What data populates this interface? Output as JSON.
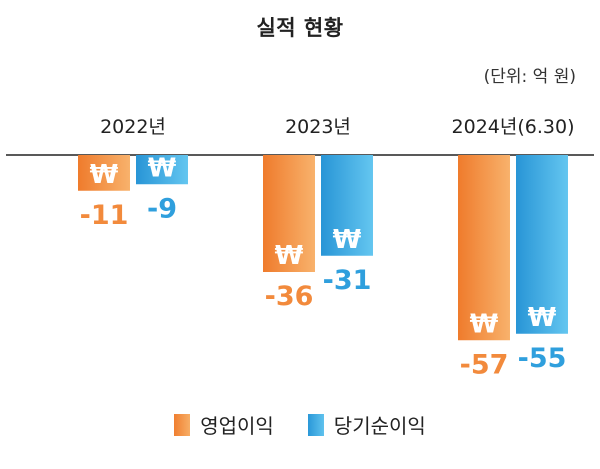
{
  "title": "실적 현황",
  "unit_note": "(단위: 억 원)",
  "currency_symbol": "₩",
  "colors": {
    "operating_profit": "#f28a3c",
    "net_profit": "#2f9fdd",
    "axis": "#222222"
  },
  "chart_data": {
    "type": "bar",
    "title": "실적 현황",
    "categories": [
      "2022년",
      "2023년",
      "2024년(6.30)"
    ],
    "series": [
      {
        "name": "영업이익",
        "values": [
          -11,
          -36,
          -57
        ]
      },
      {
        "name": "당기순이익",
        "values": [
          -9,
          -31,
          -55
        ]
      }
    ],
    "ylim": [
      -60,
      0
    ],
    "grid": false,
    "legend_position": "bottom",
    "value_labels": [
      [
        "-11",
        "-36",
        "-57"
      ],
      [
        "-9",
        "-31",
        "-55"
      ]
    ]
  },
  "legend": {
    "operating_profit": "영업이익",
    "net_profit": "당기순이익"
  }
}
